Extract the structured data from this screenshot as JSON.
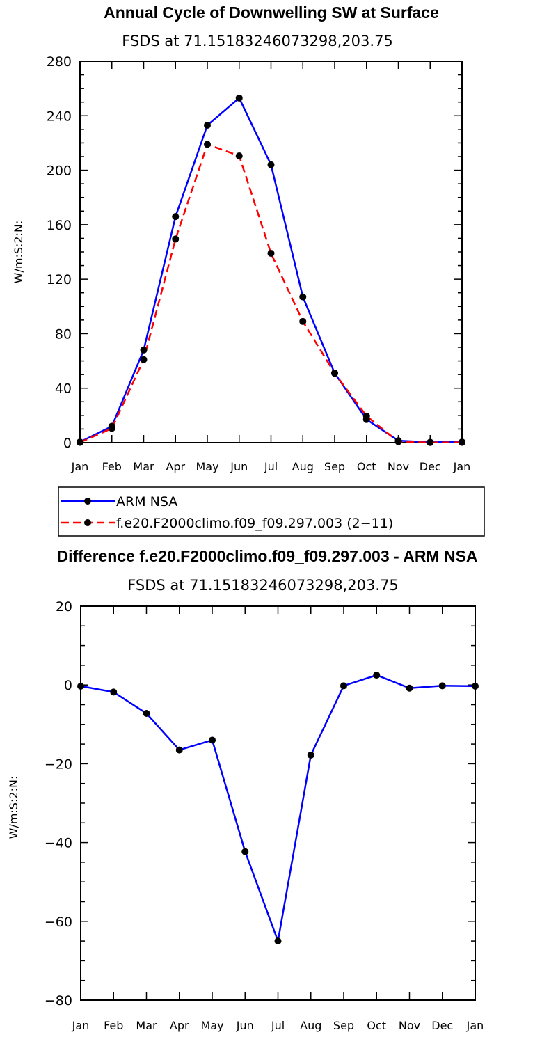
{
  "chart_data": [
    {
      "type": "line",
      "title": "Annual Cycle of Downwelling SW at Surface",
      "subtitle": "FSDS at 71.15183246073298,203.75",
      "ylabel": "W/m:S:2:N:",
      "xlabel": "",
      "categories": [
        "Jan",
        "Feb",
        "Mar",
        "Apr",
        "May",
        "Jun",
        "Jul",
        "Aug",
        "Sep",
        "Oct",
        "Nov",
        "Dec",
        "Jan"
      ],
      "ylim": [
        0,
        280
      ],
      "yticks": [
        0,
        40,
        80,
        120,
        160,
        200,
        240,
        280
      ],
      "series": [
        {
          "name": "ARM NSA",
          "color": "#0000ff",
          "dash": "solid",
          "values": [
            0.5,
            12,
            68,
            166,
            233,
            253,
            204,
            107,
            51,
            17,
            1.5,
            0.3,
            0.5
          ]
        },
        {
          "name": "f.e20.F2000climo.f09_f09.297.003 (2−11)",
          "color": "#ff0000",
          "dash": "dashed",
          "values": [
            0.2,
            10.5,
            61,
            149.5,
            219,
            210.5,
            139,
            89,
            51,
            19.5,
            0.7,
            0.1,
            0.2
          ]
        }
      ],
      "legend": "below"
    },
    {
      "type": "line",
      "title": "Difference f.e20.F2000climo.f09_f09.297.003 - ARM NSA",
      "subtitle": "FSDS at 71.15183246073298,203.75",
      "ylabel": "W/m:S:2:N:",
      "xlabel": "",
      "categories": [
        "Jan",
        "Feb",
        "Mar",
        "Apr",
        "May",
        "Jun",
        "Jul",
        "Aug",
        "Sep",
        "Oct",
        "Nov",
        "Dec",
        "Jan"
      ],
      "ylim": [
        -80,
        20
      ],
      "yticks": [
        -80,
        -60,
        -40,
        -20,
        0,
        20
      ],
      "series": [
        {
          "color": "#0000ff",
          "dash": "solid",
          "values": [
            -0.3,
            -1.8,
            -7.2,
            -16.5,
            -14,
            -42.3,
            -65,
            -17.8,
            -0.2,
            2.5,
            -0.8,
            -0.2,
            -0.3
          ]
        }
      ]
    }
  ]
}
